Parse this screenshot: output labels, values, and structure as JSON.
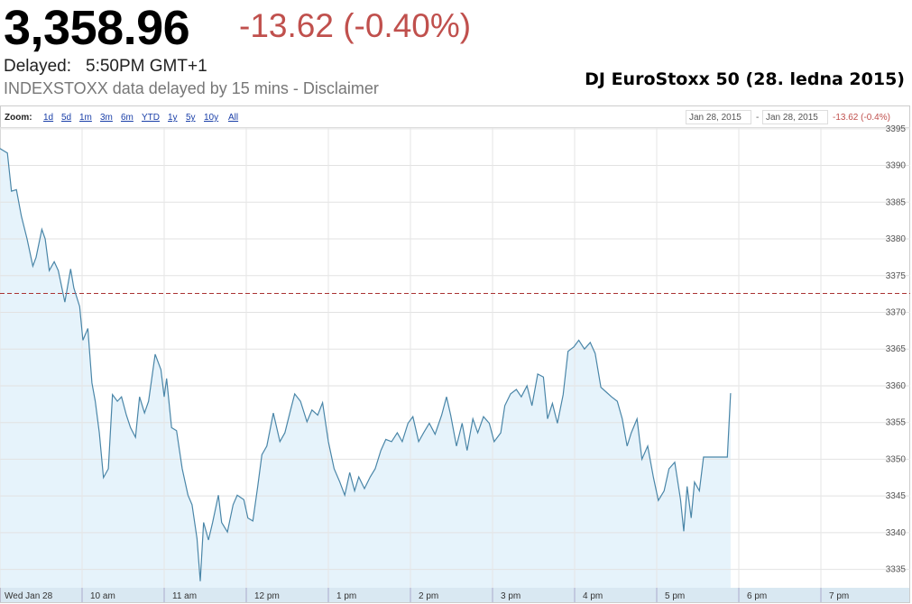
{
  "header": {
    "price": "3,358.96",
    "change": "-13.62 (-0.40%)",
    "delayed_label": "Delayed:",
    "delayed_time": "5:50PM GMT+1",
    "source": "INDEXSTOXX data delayed by 15 mins - Disclaimer"
  },
  "toolbar": {
    "zoom_label": "Zoom:",
    "zoom_options": [
      "1d",
      "5d",
      "1m",
      "3m",
      "6m",
      "YTD",
      "1y",
      "5y",
      "10y",
      "All"
    ],
    "range_start": "Jan 28, 2015",
    "range_separator": "-",
    "range_end": "Jan 28, 2015",
    "range_change": "-13.62 (-0.4%)"
  },
  "chart_data": {
    "type": "area",
    "title": "DJ EuroStoxx 50 (28. ledna 2015)",
    "color": "#4a86a8",
    "fill": "#e6f3fb",
    "grid": true,
    "reference_line": 3372.58,
    "x": [
      9.0,
      9.09,
      9.14,
      9.2,
      9.26,
      9.33,
      9.4,
      9.44,
      9.51,
      9.55,
      9.6,
      9.66,
      9.71,
      9.79,
      9.86,
      9.9,
      9.97,
      10.01,
      10.07,
      10.12,
      10.16,
      10.21,
      10.26,
      10.32,
      10.37,
      10.43,
      10.48,
      10.54,
      10.59,
      10.65,
      10.7,
      10.76,
      10.81,
      10.89,
      10.96,
      11.0,
      11.03,
      11.09,
      11.15,
      11.22,
      11.29,
      11.34,
      11.4,
      11.44,
      11.48,
      11.54,
      11.59,
      11.66,
      11.7,
      11.77,
      11.84,
      11.89,
      11.97,
      12.02,
      12.08,
      12.14,
      12.19,
      12.25,
      12.33,
      12.41,
      12.47,
      12.54,
      12.59,
      12.66,
      12.74,
      12.8,
      12.87,
      12.93,
      13.0,
      13.07,
      13.14,
      13.2,
      13.26,
      13.32,
      13.37,
      13.44,
      13.51,
      13.57,
      13.64,
      13.7,
      13.77,
      13.84,
      13.9,
      13.97,
      14.03,
      14.1,
      14.16,
      14.23,
      14.3,
      14.38,
      14.44,
      14.49,
      14.56,
      14.63,
      14.69,
      14.76,
      14.82,
      14.89,
      14.96,
      15.02,
      15.1,
      15.15,
      15.22,
      15.29,
      15.35,
      15.42,
      15.48,
      15.55,
      15.62,
      15.67,
      15.73,
      15.79,
      15.86,
      15.92,
      15.99,
      16.05,
      16.12,
      16.19,
      16.25,
      16.32,
      16.38,
      16.45,
      16.52,
      16.58,
      16.64,
      16.69,
      16.76,
      16.82,
      16.89,
      16.96,
      17.02,
      17.09,
      17.15,
      17.22,
      17.29,
      17.33,
      17.37,
      17.42,
      17.46,
      17.52,
      17.57,
      17.64,
      17.86,
      17.9
    ],
    "values": [
      3392.3,
      3391.7,
      3386.5,
      3386.7,
      3383.1,
      3380.0,
      3376.3,
      3377.5,
      3381.3,
      3380.0,
      3375.7,
      3376.9,
      3375.7,
      3371.4,
      3375.9,
      3373.3,
      3370.8,
      3366.2,
      3367.8,
      3360.4,
      3357.9,
      3353.6,
      3347.5,
      3348.7,
      3358.8,
      3357.9,
      3358.5,
      3356.0,
      3354.3,
      3353.0,
      3358.5,
      3356.3,
      3357.9,
      3364.3,
      3362.2,
      3358.5,
      3361.0,
      3354.3,
      3353.9,
      3348.7,
      3345.1,
      3343.8,
      3339.2,
      3333.4,
      3341.4,
      3339.0,
      3341.4,
      3345.1,
      3341.4,
      3340.1,
      3343.8,
      3345.1,
      3344.5,
      3342.0,
      3341.6,
      3346.3,
      3350.6,
      3351.8,
      3356.3,
      3352.4,
      3353.6,
      3356.7,
      3358.9,
      3357.9,
      3355.1,
      3356.7,
      3356.0,
      3357.7,
      3352.4,
      3348.7,
      3346.9,
      3345.1,
      3348.2,
      3345.7,
      3347.6,
      3346.0,
      3347.6,
      3348.7,
      3351.2,
      3352.7,
      3352.4,
      3353.6,
      3352.4,
      3354.9,
      3355.8,
      3352.4,
      3353.6,
      3354.9,
      3353.4,
      3356.0,
      3358.5,
      3356.0,
      3351.8,
      3354.9,
      3351.2,
      3355.5,
      3353.6,
      3355.8,
      3354.9,
      3352.4,
      3353.6,
      3357.3,
      3358.9,
      3359.5,
      3358.5,
      3360.0,
      3357.3,
      3361.6,
      3361.2,
      3355.5,
      3357.6,
      3354.9,
      3358.8,
      3364.7,
      3365.3,
      3366.2,
      3365.0,
      3365.9,
      3364.4,
      3359.8,
      3359.2,
      3358.5,
      3357.9,
      3355.5,
      3351.8,
      3353.6,
      3355.5,
      3350.0,
      3351.8,
      3347.5,
      3344.4,
      3345.7,
      3348.7,
      3349.6,
      3344.5,
      3340.2,
      3346.3,
      3342.0,
      3346.9,
      3345.7,
      3350.3,
      3350.3,
      3350.3,
      3359.0
    ],
    "xlim": [
      9,
      20
    ],
    "xticks": [
      {
        "value": 9,
        "label": "Wed Jan 28"
      },
      {
        "value": 10,
        "label": "10 am"
      },
      {
        "value": 11,
        "label": "11 am"
      },
      {
        "value": 12,
        "label": "12 pm"
      },
      {
        "value": 13,
        "label": "1 pm"
      },
      {
        "value": 14,
        "label": "2 pm"
      },
      {
        "value": 15,
        "label": "3 pm"
      },
      {
        "value": 16,
        "label": "4 pm"
      },
      {
        "value": 17,
        "label": "5 pm"
      },
      {
        "value": 18,
        "label": "6 pm"
      },
      {
        "value": 19,
        "label": "7 pm"
      }
    ],
    "ylim": [
      3332.5,
      3395.1
    ],
    "yticks": [
      3335,
      3340,
      3345,
      3350,
      3355,
      3360,
      3365,
      3370,
      3375,
      3380,
      3385,
      3390,
      3395
    ]
  }
}
